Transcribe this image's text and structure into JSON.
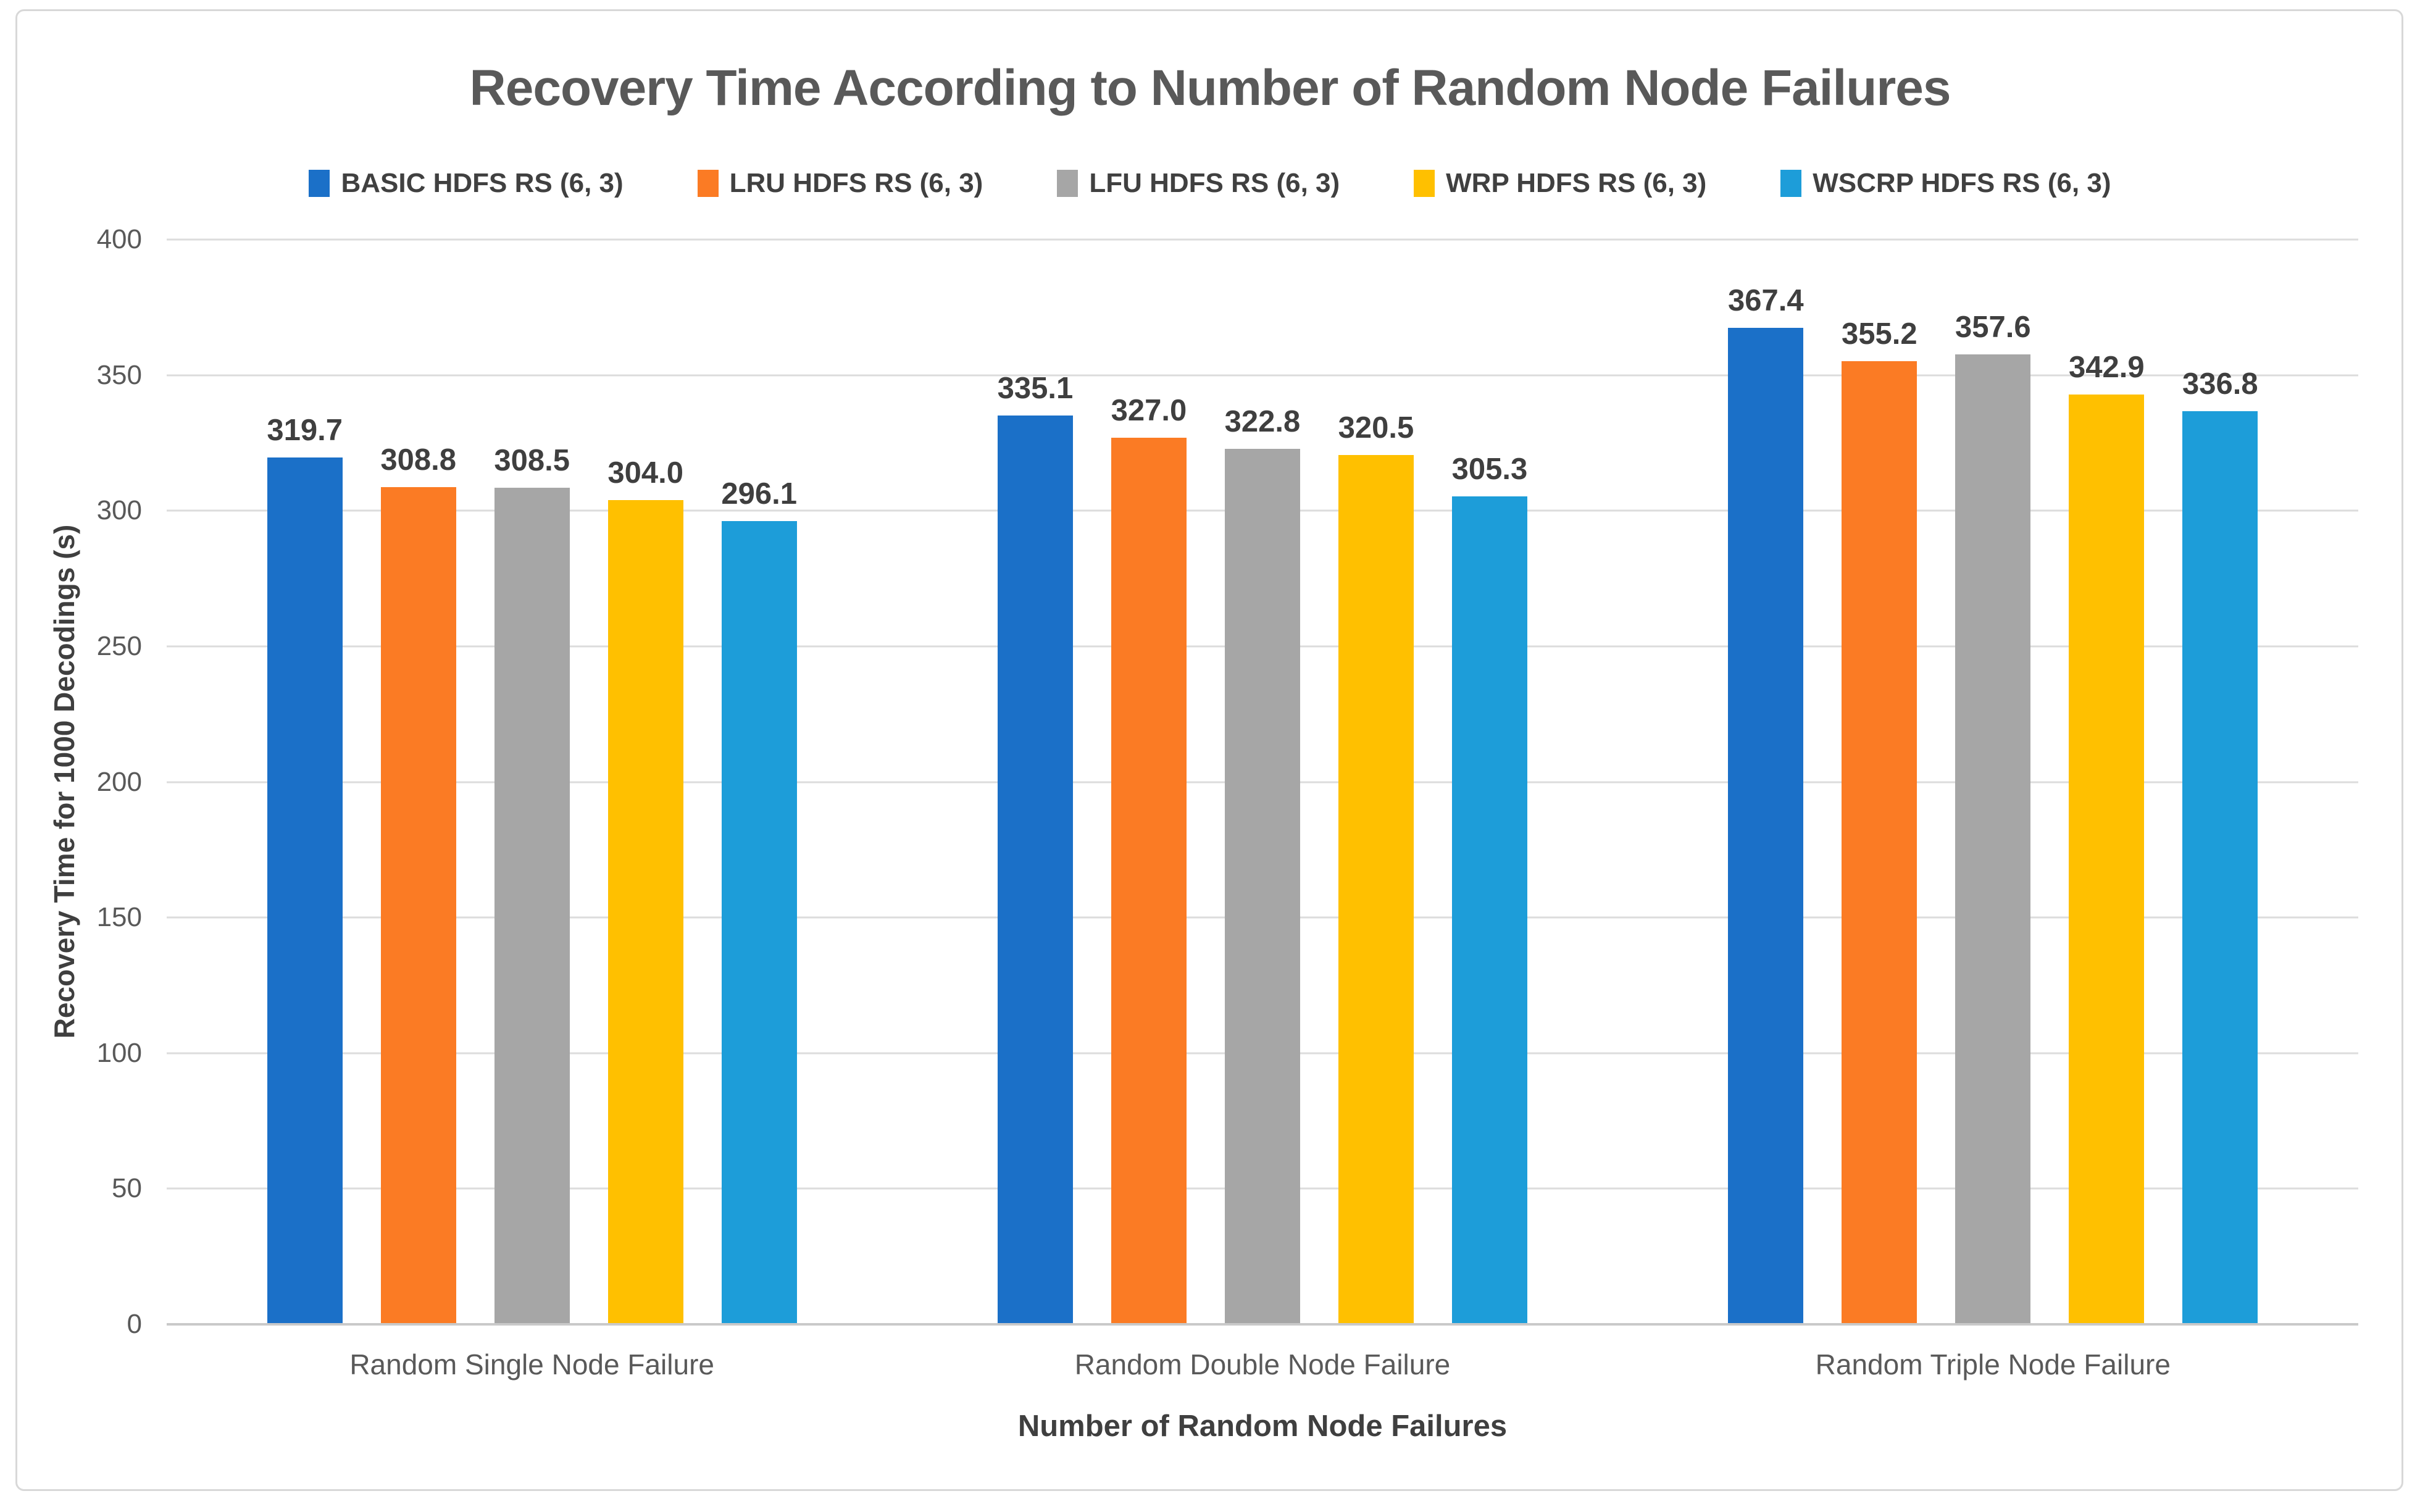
{
  "window": {
    "background": "#ffffff",
    "frame_border_color": "#d8d8d8"
  },
  "colors": {
    "title_text": "#595959",
    "axis_text": "#595959",
    "label_text": "#3f3f3f",
    "gridline": "#dcdcdc",
    "baseline": "#c9c9c9"
  },
  "chart_data": {
    "type": "bar",
    "title": "Recovery Time According to Number of Random Node Failures",
    "xlabel": "Number of Random Node Failures",
    "ylabel": "Recovery Time for 1000 Decodings (s)",
    "ylim": [
      0,
      400
    ],
    "ytick_step": 50,
    "yticks": [
      0,
      50,
      100,
      150,
      200,
      250,
      300,
      350,
      400
    ],
    "grid": true,
    "legend_position": "top",
    "value_labels": true,
    "value_label_decimals": 1,
    "categories": [
      "Random Single Node Failure",
      "Random Double Node Failure",
      "Random Triple Node Failure"
    ],
    "series": [
      {
        "name": "BASIC HDFS RS (6, 3)",
        "color": "#1b70c8",
        "values": [
          319.7,
          335.1,
          367.4
        ]
      },
      {
        "name": "LRU HDFS RS (6, 3)",
        "color": "#fb7b24",
        "values": [
          308.8,
          327.0,
          355.2
        ]
      },
      {
        "name": "LFU HDFS RS (6, 3)",
        "color": "#a6a6a6",
        "values": [
          308.5,
          322.8,
          357.6
        ]
      },
      {
        "name": "WRP HDFS RS (6, 3)",
        "color": "#ffc000",
        "values": [
          304.0,
          320.5,
          342.9
        ]
      },
      {
        "name": "WSCRP HDFS RS (6, 3)",
        "color": "#1d9dd9",
        "values": [
          296.1,
          305.3,
          336.8
        ]
      }
    ]
  }
}
